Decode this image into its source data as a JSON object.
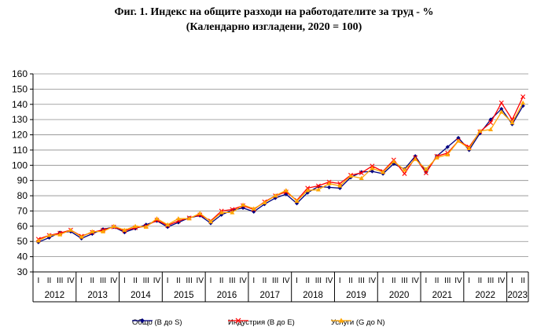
{
  "chart_data": {
    "type": "line",
    "title": "Фиг. 1. Индекс на общите разходи на работодателите за труд - %",
    "subtitle": "(Календарно изгладени, 2020 = 100)",
    "ylim": [
      30,
      160
    ],
    "yticks": [
      30,
      40,
      50,
      60,
      70,
      80,
      90,
      100,
      110,
      120,
      130,
      140,
      150,
      160
    ],
    "quarter_labels": [
      "I",
      "II",
      "III",
      "IV"
    ],
    "years": [
      "2012",
      "2013",
      "2014",
      "2015",
      "2016",
      "2017",
      "2018",
      "2019",
      "2020",
      "2021",
      "2022",
      "2023"
    ],
    "grid": "horizontal",
    "legend_position": "bottom",
    "series": [
      {
        "name": "Общо (B до S)",
        "color": "#000080",
        "marker": "diamond",
        "values": [
          49.5,
          52.5,
          55.8,
          56.5,
          52.0,
          55.0,
          58.0,
          59.5,
          56.0,
          58.5,
          61.0,
          63.5,
          59.5,
          62.5,
          65.5,
          67.0,
          62.0,
          67.5,
          70.5,
          72.0,
          69.5,
          74.5,
          78.5,
          81.0,
          75.0,
          82.0,
          86.0,
          85.5,
          85.0,
          92.0,
          95.5,
          96.0,
          94.5,
          101.0,
          97.5,
          106.0,
          95.5,
          106.0,
          112.0,
          118.0,
          110.0,
          121.0,
          130.0,
          137.0,
          127.0,
          139.0
        ]
      },
      {
        "name": "Индустрия (B до E)",
        "color": "#ff0000",
        "marker": "x",
        "values": [
          51.5,
          54.0,
          55.5,
          57.5,
          53.5,
          56.0,
          57.5,
          59.5,
          57.0,
          59.0,
          60.0,
          64.0,
          60.5,
          63.5,
          65.5,
          67.5,
          63.5,
          70.0,
          71.0,
          73.5,
          71.0,
          76.0,
          80.0,
          82.5,
          77.0,
          85.0,
          86.5,
          89.0,
          88.0,
          93.5,
          95.0,
          99.5,
          96.0,
          103.5,
          94.5,
          105.0,
          95.0,
          106.0,
          108.0,
          116.0,
          112.0,
          122.0,
          128.0,
          141.0,
          130.0,
          145.0
        ]
      },
      {
        "name": "Услуги (G до N)",
        "color": "#ffa500",
        "marker": "triangle",
        "values": [
          50.5,
          54.0,
          54.5,
          57.5,
          53.0,
          56.5,
          56.5,
          60.0,
          57.5,
          60.0,
          59.5,
          65.0,
          61.0,
          65.0,
          65.0,
          68.5,
          63.0,
          69.0,
          69.0,
          74.0,
          71.5,
          75.5,
          80.0,
          83.5,
          76.5,
          83.5,
          84.0,
          88.0,
          86.5,
          93.0,
          91.5,
          98.0,
          95.5,
          102.5,
          97.0,
          104.0,
          97.5,
          105.0,
          107.0,
          116.0,
          111.0,
          122.5,
          123.5,
          135.0,
          128.0,
          141.0
        ]
      }
    ]
  }
}
